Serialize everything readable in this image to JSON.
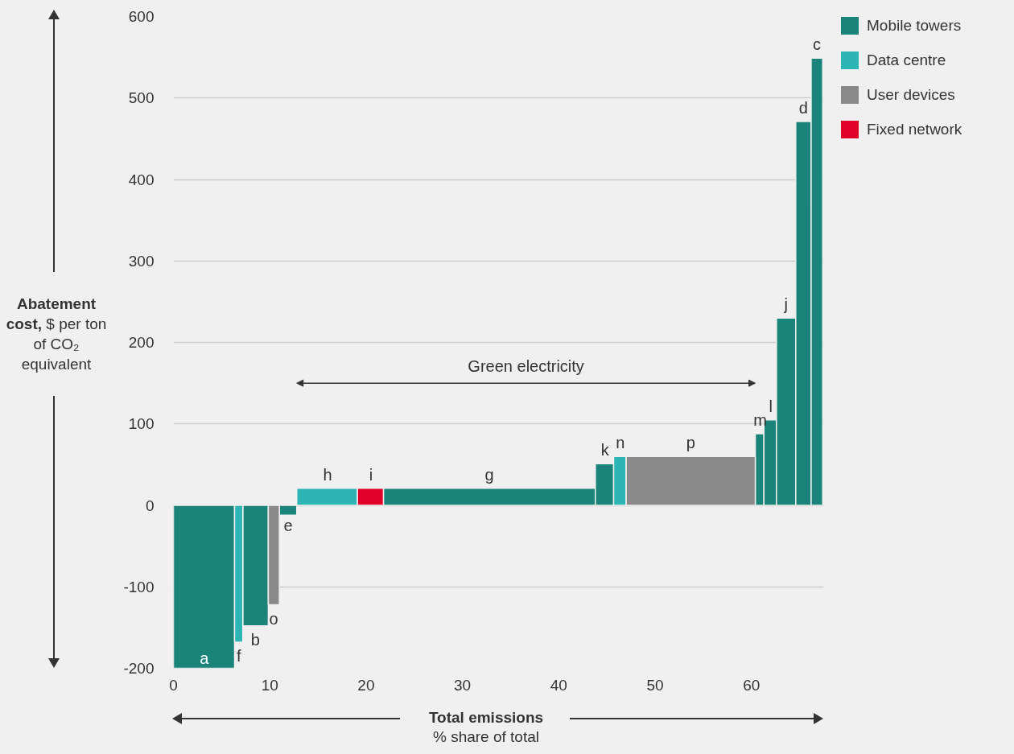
{
  "chart_data": {
    "type": "histogram",
    "xlabel": "Total emissions\n% share of total",
    "ylabel": "Abatement cost, $ per ton of CO₂ equivalent",
    "bins": [
      0,
      6.35,
      7.2,
      9.85,
      11.0,
      12.8,
      19.1,
      21.8,
      43.8,
      45.7,
      47.0,
      60.4,
      61.3,
      62.6,
      64.6,
      66.2,
      67.4
    ],
    "series": [
      {
        "name": "Mobile towers",
        "color": "#1a837a",
        "values": [
          -200,
          null,
          -148,
          null,
          -12,
          null,
          null,
          21,
          51,
          null,
          null,
          88,
          105,
          230,
          471,
          549
        ]
      },
      {
        "name": "Data centre",
        "color": "#2bb5b5",
        "values": [
          null,
          -168,
          null,
          null,
          null,
          21,
          null,
          null,
          null,
          60,
          null,
          null,
          null,
          null,
          null,
          null
        ]
      },
      {
        "name": "User devices",
        "color": "#898989",
        "values": [
          null,
          null,
          null,
          -122,
          null,
          null,
          null,
          null,
          null,
          null,
          60,
          null,
          null,
          null,
          null,
          null
        ]
      },
      {
        "name": "Fixed network",
        "color": "#e0002a",
        "values": [
          null,
          null,
          null,
          null,
          null,
          null,
          21,
          null,
          null,
          null,
          null,
          null,
          null,
          null,
          null,
          null
        ]
      }
    ],
    "annotations": [
      {
        "text": "a",
        "x": 3.2,
        "y": -200
      },
      {
        "text": "f",
        "x": 6.8,
        "y": -168
      },
      {
        "text": "b",
        "x": 8.5,
        "y": -148
      },
      {
        "text": "o",
        "x": 10.4,
        "y": -122
      },
      {
        "text": "e",
        "x": 11.9,
        "y": -12
      },
      {
        "text": "h",
        "x": 16.0,
        "y": 21
      },
      {
        "text": "i",
        "x": 20.5,
        "y": 21
      },
      {
        "text": "g",
        "x": 32.8,
        "y": 21
      },
      {
        "text": "k",
        "x": 44.8,
        "y": 51
      },
      {
        "text": "n",
        "x": 46.4,
        "y": 60
      },
      {
        "text": "p",
        "x": 53.7,
        "y": 60
      },
      {
        "text": "m",
        "x": 60.9,
        "y": 88
      },
      {
        "text": "l",
        "x": 62.0,
        "y": 105
      },
      {
        "text": "j",
        "x": 63.6,
        "y": 230
      },
      {
        "text": "d",
        "x": 65.4,
        "y": 471
      },
      {
        "text": "c",
        "x": 66.8,
        "y": 549
      },
      "Green electricity"
    ],
    "xlim": [
      0,
      67.5
    ],
    "ylim": [
      -200,
      600
    ],
    "xticks": [
      0,
      10,
      20,
      30,
      40,
      50,
      60
    ],
    "yticks": [
      -200,
      -100,
      0,
      100,
      200,
      300,
      400,
      500,
      600
    ],
    "grid": "y",
    "legend": "top right"
  }
}
